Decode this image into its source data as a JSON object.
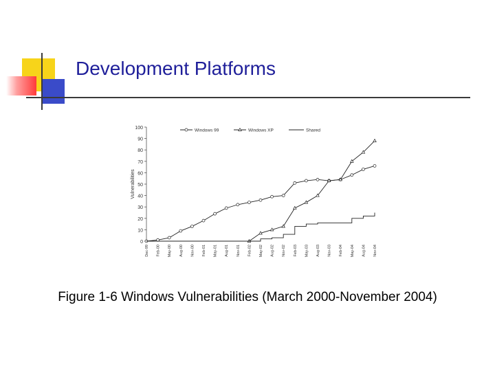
{
  "slide": {
    "title": "Development Platforms",
    "caption": "Figure 1-6 Windows Vulnerabilities (March 2000-November 2004)"
  },
  "colors": {
    "title": "#1f1f9a",
    "accent_yellow": "#f7d41a",
    "accent_blue": "#3a4bc9",
    "accent_red": "#ff3a3a",
    "rule": "#3a3a3a"
  },
  "chart_data": {
    "type": "line",
    "title": "",
    "xlabel": "",
    "ylabel": "Vulnerabilities",
    "ylim": [
      0,
      100
    ],
    "yticks": [
      0,
      10,
      20,
      30,
      40,
      50,
      60,
      70,
      80,
      90,
      100
    ],
    "categories": [
      "Dec-99",
      "Feb-00",
      "May-00",
      "Aug-00",
      "Nov-00",
      "Feb-01",
      "May-01",
      "Aug-01",
      "Nov-01",
      "Feb-02",
      "May-02",
      "Aug-02",
      "Nov-02",
      "Feb-03",
      "May-03",
      "Aug-03",
      "Nov-03",
      "Feb-04",
      "May-04",
      "Aug-04",
      "Nov-04"
    ],
    "legend_position": "top",
    "series": [
      {
        "name": "Windows 99",
        "marker": "circle",
        "values": [
          0,
          1,
          3,
          9,
          13,
          18,
          24,
          29,
          32,
          34,
          36,
          39,
          40,
          51,
          53,
          54,
          53,
          54,
          58,
          63,
          66
        ]
      },
      {
        "name": "Windows XP",
        "marker": "triangle",
        "values": [
          null,
          null,
          null,
          null,
          null,
          null,
          null,
          null,
          null,
          0,
          7,
          10,
          13,
          29,
          34,
          40,
          53,
          54,
          70,
          78,
          88
        ]
      },
      {
        "name": "Shared",
        "marker": "none",
        "values": [
          0,
          0,
          0,
          0,
          0,
          0,
          0,
          0,
          0,
          0,
          2,
          3,
          6,
          13,
          15,
          16,
          16,
          16,
          20,
          22,
          25
        ]
      }
    ]
  }
}
